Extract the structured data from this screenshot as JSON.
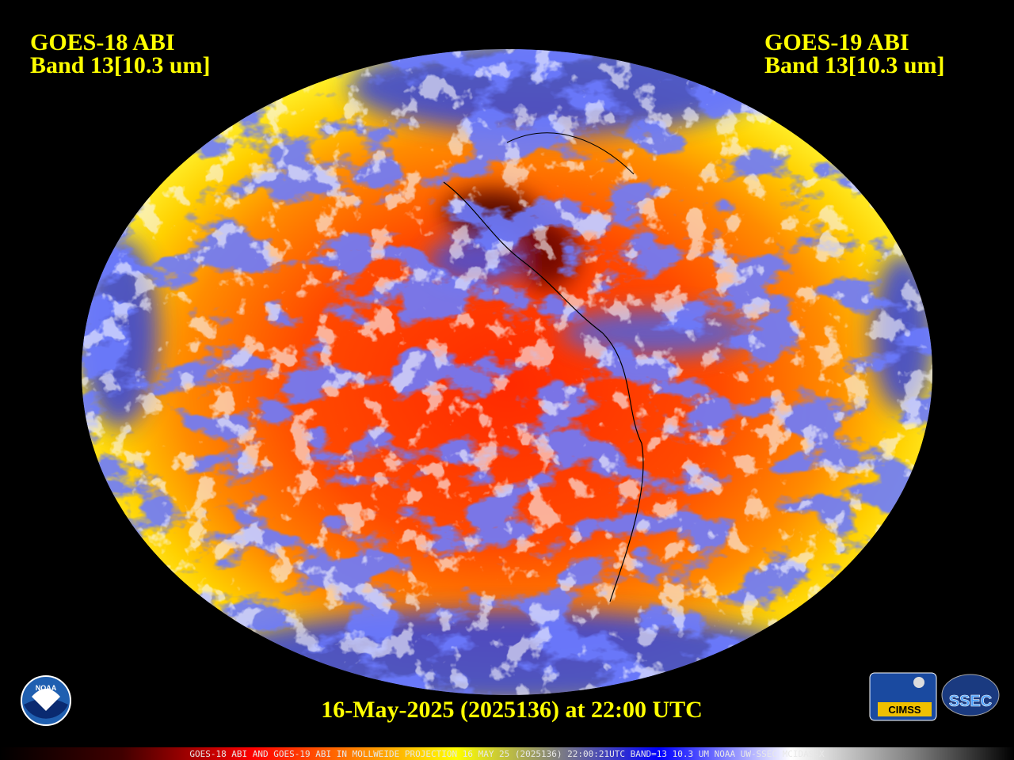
{
  "header": {
    "left": {
      "satellite": "GOES-18 ABI",
      "band": "Band 13[10.3 um]"
    },
    "right": {
      "satellite": "GOES-19 ABI",
      "band": "Band 13[10.3 um]"
    }
  },
  "timestamp": "16-May-2025 (2025136) at 22:00 UTC",
  "footer": "GOES-18 ABI AND GOES-19 ABI IN MOLLWEIDE PROJECTION 16 MAY 25 (2025136) 22:00:21UTC BAND=13 10.3 UM NOAA UW-SSEC MCIDAS-X",
  "logos": {
    "noaa": "NOAA",
    "cimss": "CIMSS",
    "ssec": "SSEC"
  }
}
